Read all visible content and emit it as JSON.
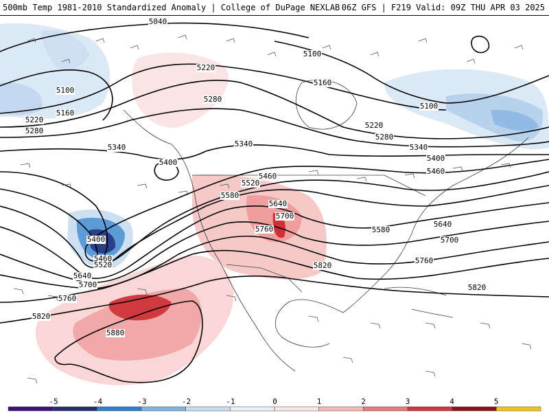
{
  "header": {
    "title_left": "500mb Temp 1981-2010 Standardized Anomaly | College of DuPage NEXLAB",
    "title_right": "06Z GFS | F219 Valid: 09Z THU APR 03 2025"
  },
  "contour_labels": [
    "5040",
    "5100",
    "5100",
    "5100",
    "5160",
    "5160",
    "5220",
    "5220",
    "5220",
    "5280",
    "5280",
    "5280",
    "5340",
    "5340",
    "5340",
    "5400",
    "5400",
    "5400",
    "5460",
    "5460",
    "5460",
    "5520",
    "5520",
    "5580",
    "5580",
    "5640",
    "5640",
    "5640",
    "5700",
    "5700",
    "5700",
    "5760",
    "5760",
    "5760",
    "5820",
    "5820",
    "5820",
    "5880"
  ],
  "legend": {
    "ticks": [
      "-5",
      "-4",
      "-3",
      "-2",
      "-1",
      "0",
      "1",
      "2",
      "3",
      "4",
      "5"
    ],
    "colors": [
      "#3f0f7a",
      "#24306b",
      "#2f7fcf",
      "#7db4e4",
      "#c8dcf0",
      "#eaf1f8",
      "#fbe6e6",
      "#f2b8b8",
      "#e77b7b",
      "#d2343c",
      "#8e1218",
      "#f0c418"
    ]
  },
  "colors": {
    "ocean_land": "#ffffff",
    "contour": "#000000",
    "coastline": "#3a3a3a",
    "barb": "#555555"
  }
}
